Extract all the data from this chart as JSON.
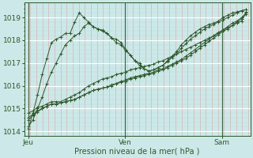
{
  "bg_color": "#cde8e8",
  "line_color": "#2d5a2d",
  "ylim": [
    1013.8,
    1019.65
  ],
  "yticks": [
    1014,
    1015,
    1016,
    1017,
    1018,
    1019
  ],
  "day_labels": [
    "Jeu",
    "Ven",
    "Sam"
  ],
  "xlabel": "Pression niveau de la mer( hPa )",
  "series": [
    [
      1014.1,
      1014.8,
      1015.6,
      1016.5,
      1017.2,
      1017.9,
      1018.05,
      1018.15,
      1018.3,
      1018.3,
      1018.8,
      1019.2,
      1019.0,
      1018.8,
      1018.6,
      1018.5,
      1018.45,
      1018.3,
      1018.1,
      1018.05,
      1017.9,
      1017.6,
      1017.35,
      1017.1,
      1017.0,
      1016.75,
      1016.65,
      1016.7,
      1016.8,
      1016.9,
      1017.1,
      1017.3,
      1017.5,
      1017.8,
      1018.0,
      1018.2,
      1018.35,
      1018.5,
      1018.6,
      1018.7,
      1018.75,
      1018.85,
      1019.0,
      1019.1,
      1019.2,
      1019.25,
      1019.3,
      1019.35
    ],
    [
      1014.8,
      1014.9,
      1015.05,
      1015.1,
      1015.2,
      1015.3,
      1015.3,
      1015.3,
      1015.4,
      1015.5,
      1015.6,
      1015.7,
      1015.85,
      1016.0,
      1016.1,
      1016.2,
      1016.3,
      1016.35,
      1016.4,
      1016.5,
      1016.55,
      1016.6,
      1016.7,
      1016.75,
      1016.8,
      1016.85,
      1016.9,
      1016.95,
      1017.05,
      1017.1,
      1017.2,
      1017.3,
      1017.4,
      1017.5,
      1017.6,
      1017.7,
      1017.8,
      1017.9,
      1018.0,
      1018.1,
      1018.2,
      1018.3,
      1018.45,
      1018.6,
      1018.75,
      1018.85,
      1019.0,
      1019.2
    ],
    [
      1014.5,
      1014.7,
      1014.85,
      1015.0,
      1015.1,
      1015.2,
      1015.2,
      1015.25,
      1015.3,
      1015.35,
      1015.4,
      1015.5,
      1015.6,
      1015.7,
      1015.8,
      1015.85,
      1015.9,
      1015.95,
      1016.0,
      1016.1,
      1016.15,
      1016.2,
      1016.3,
      1016.35,
      1016.4,
      1016.45,
      1016.5,
      1016.55,
      1016.65,
      1016.7,
      1016.8,
      1016.9,
      1017.0,
      1017.1,
      1017.2,
      1017.35,
      1017.5,
      1017.65,
      1017.8,
      1017.95,
      1018.1,
      1018.25,
      1018.4,
      1018.5,
      1018.65,
      1018.8,
      1018.95,
      1019.15
    ],
    [
      1014.6,
      1014.75,
      1014.9,
      1015.0,
      1015.1,
      1015.2,
      1015.2,
      1015.25,
      1015.3,
      1015.35,
      1015.4,
      1015.5,
      1015.6,
      1015.7,
      1015.8,
      1015.85,
      1015.9,
      1015.95,
      1016.05,
      1016.1,
      1016.2,
      1016.25,
      1016.35,
      1016.4,
      1016.45,
      1016.5,
      1016.55,
      1016.6,
      1016.7,
      1016.75,
      1016.85,
      1016.95,
      1017.05,
      1017.15,
      1017.3,
      1017.45,
      1017.6,
      1017.75,
      1017.9,
      1018.05,
      1018.2,
      1018.35,
      1018.45,
      1018.55,
      1018.65,
      1018.75,
      1018.85,
      1019.25
    ],
    [
      1014.2,
      1014.5,
      1015.0,
      1015.5,
      1016.1,
      1016.6,
      1017.0,
      1017.4,
      1017.8,
      1018.0,
      1018.2,
      1018.3,
      1018.6,
      1018.75,
      1018.6,
      1018.5,
      1018.4,
      1018.3,
      1018.1,
      1017.9,
      1017.8,
      1017.55,
      1017.35,
      1017.1,
      1016.9,
      1016.75,
      1016.65,
      1016.7,
      1016.8,
      1016.9,
      1017.05,
      1017.25,
      1017.4,
      1017.65,
      1017.85,
      1018.05,
      1018.2,
      1018.35,
      1018.5,
      1018.6,
      1018.7,
      1018.8,
      1018.9,
      1019.0,
      1019.1,
      1019.2,
      1019.3,
      1019.35
    ]
  ]
}
